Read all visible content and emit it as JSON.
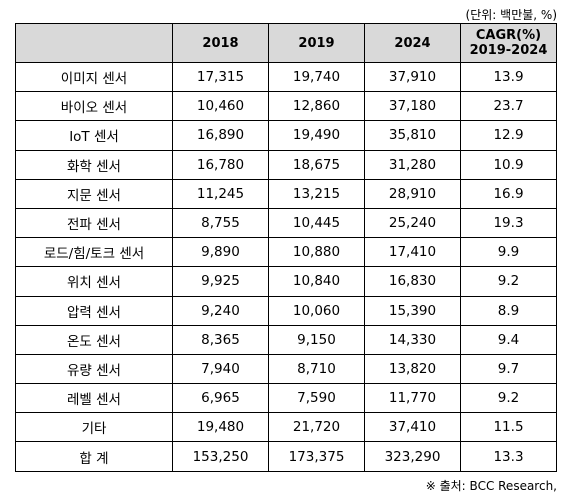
{
  "unit_note": "(단위: 백만불, %)",
  "headers": [
    "",
    "2018",
    "2019",
    "2024",
    "CAGR(%)\n2019-2024"
  ],
  "rows": [
    [
      "이미지 센서",
      "17,315",
      "19,740",
      "37,910",
      "13.9"
    ],
    [
      "바이오 센서",
      "10,460",
      "12,860",
      "37,180",
      "23.7"
    ],
    [
      "IoT 센서",
      "16,890",
      "19,490",
      "35,810",
      "12.9"
    ],
    [
      "화학 센서",
      "16,780",
      "18,675",
      "31,280",
      "10.9"
    ],
    [
      "지문 센서",
      "11,245",
      "13,215",
      "28,910",
      "16.9"
    ],
    [
      "전파 센서",
      "8,755",
      "10,445",
      "25,240",
      "19.3"
    ],
    [
      "로드/힘/토크 센서",
      "9,890",
      "10,880",
      "17,410",
      "9.9"
    ],
    [
      "위치 센서",
      "9,925",
      "10,840",
      "16,830",
      "9.2"
    ],
    [
      "압력 센서",
      "9,240",
      "10,060",
      "15,390",
      "8.9"
    ],
    [
      "온도 센서",
      "8,365",
      "9,150",
      "14,330",
      "9.4"
    ],
    [
      "유량 센서",
      "7,940",
      "8,710",
      "13,820",
      "9.7"
    ],
    [
      "레벨 센서",
      "6,965",
      "7,590",
      "11,770",
      "9.2"
    ],
    [
      "기타",
      "19,480",
      "21,720",
      "37,410",
      "11.5"
    ],
    [
      "합 계",
      "153,250",
      "173,375",
      "323,290",
      "13.3"
    ]
  ],
  "source_note": "※ 출처: BCC Research,"
}
